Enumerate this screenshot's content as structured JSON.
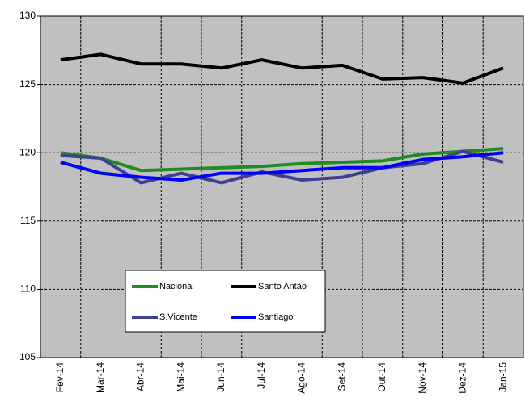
{
  "chart_data": {
    "type": "line",
    "categories": [
      "Fev-14",
      "Mar-14",
      "Abr-14",
      "Mai-14",
      "Jun-14",
      "Jul-14",
      "Ago-14",
      "Set-14",
      "Out-14",
      "Nov-14",
      "Dez-14",
      "Jan-15"
    ],
    "series": [
      {
        "name": "Nacional",
        "color": "#1e8c1e",
        "values": [
          120.0,
          119.6,
          118.7,
          118.8,
          118.9,
          119.0,
          119.2,
          119.3,
          119.4,
          119.9,
          120.1,
          120.3
        ]
      },
      {
        "name": "Santo Antão",
        "color": "#000000",
        "values": [
          126.8,
          127.2,
          126.5,
          126.5,
          126.2,
          126.8,
          126.2,
          126.4,
          125.4,
          125.5,
          125.1,
          126.2
        ]
      },
      {
        "name": "S.Vicente",
        "color": "#403e90",
        "values": [
          119.8,
          119.6,
          117.8,
          118.5,
          117.8,
          118.6,
          118.0,
          118.2,
          118.9,
          119.2,
          120.1,
          119.3
        ]
      },
      {
        "name": "Santiago",
        "color": "#0000ff",
        "values": [
          119.3,
          118.5,
          118.2,
          118.0,
          118.5,
          118.5,
          118.7,
          118.9,
          118.9,
          119.5,
          119.7,
          120.0
        ]
      }
    ],
    "ylim": [
      105,
      130
    ],
    "yticks": [
      105,
      110,
      115,
      120,
      125,
      130
    ],
    "grid": true,
    "legend_position": "bottom-center",
    "background": "#c0c0c0"
  }
}
